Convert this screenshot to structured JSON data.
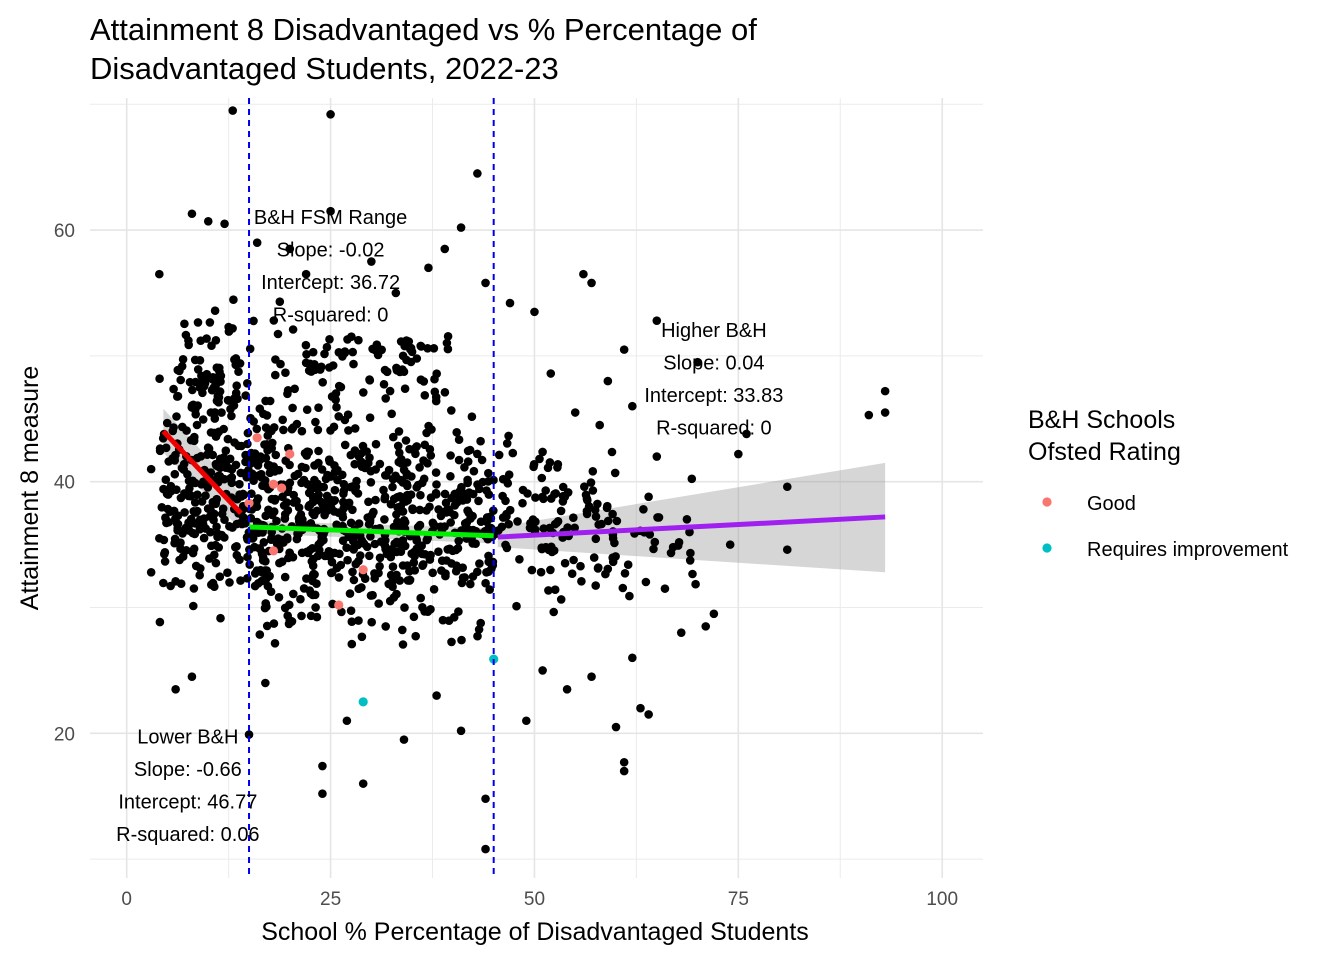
{
  "chart_data": {
    "type": "scatter",
    "title": "Attainment 8 Disadvantaged vs % Percentage of\nDisadvantaged Students, 2022-23",
    "xlabel": "School % Percentage of Disadvantaged Students",
    "ylabel": "Attainment 8 measure",
    "xlim": [
      -4.5,
      105
    ],
    "ylim": [
      8.5,
      70.5
    ],
    "x_ticks": [
      0,
      25,
      50,
      75,
      100
    ],
    "y_ticks": [
      20,
      40,
      60
    ],
    "grid": true,
    "vlines": [
      {
        "x": 15,
        "color": "#0000ee",
        "style": "dashed"
      },
      {
        "x": 45,
        "color": "#0000ee",
        "style": "dashed"
      }
    ],
    "fit_lines": [
      {
        "x": [
          4.5,
          14
        ],
        "y": [
          44.0,
          37.5
        ],
        "color": "#ee0000",
        "band": [
          [
            4.5,
            45.8,
            42.3
          ],
          [
            14,
            39.0,
            36.2
          ]
        ]
      },
      {
        "x": [
          15,
          45
        ],
        "y": [
          36.4,
          35.7
        ],
        "color": "#00ee00",
        "band": [
          [
            15,
            36.9,
            35.9
          ],
          [
            45,
            36.3,
            35.1
          ]
        ]
      },
      {
        "x": [
          45.5,
          93
        ],
        "y": [
          35.6,
          37.2
        ],
        "color": "#a020f0",
        "band": [
          [
            45.5,
            36.4,
            34.8
          ],
          [
            93,
            41.5,
            32.8
          ]
        ]
      }
    ],
    "annotations": [
      {
        "x": 25,
        "y": 60.5,
        "lines": [
          "B&H FSM Range",
          "Slope: -0.02",
          "Intercept: 36.72",
          "R-squared: 0"
        ]
      },
      {
        "x": 72,
        "y": 51.5,
        "lines": [
          "Higher B&H",
          "Slope: 0.04",
          "Intercept: 33.83",
          "R-squared: 0"
        ]
      },
      {
        "x": 7.5,
        "y": 19.2,
        "lines": [
          "Lower B&H",
          "Slope: -0.66",
          "Intercept: 46.77",
          "R-squared: 0.06"
        ]
      }
    ],
    "legend": {
      "title": "B&H Schools\nOfsted Rating",
      "position": "right",
      "entries": [
        {
          "label": "Good",
          "color": "#f8766d"
        },
        {
          "label": "Requires improvement",
          "color": "#00bfc4"
        }
      ]
    },
    "highlighted_points": [
      {
        "x": 16,
        "y": 43.5,
        "rating": "Good"
      },
      {
        "x": 20,
        "y": 42.2,
        "rating": "Good"
      },
      {
        "x": 18,
        "y": 39.8,
        "rating": "Good"
      },
      {
        "x": 19,
        "y": 39.5,
        "rating": "Good"
      },
      {
        "x": 15,
        "y": 38.3,
        "rating": "Good"
      },
      {
        "x": 18,
        "y": 34.5,
        "rating": "Good"
      },
      {
        "x": 29,
        "y": 33.0,
        "rating": "Good"
      },
      {
        "x": 26,
        "y": 30.2,
        "rating": "Good"
      },
      {
        "x": 29,
        "y": 22.5,
        "rating": "Requires improvement"
      },
      {
        "x": 45,
        "y": 25.9,
        "rating": "Requires improvement"
      }
    ],
    "outlier_points": [
      {
        "x": 13,
        "y": 69.5
      },
      {
        "x": 25,
        "y": 69.2
      },
      {
        "x": 43,
        "y": 64.5
      },
      {
        "x": 8,
        "y": 61.3
      },
      {
        "x": 25,
        "y": 61.5
      },
      {
        "x": 41,
        "y": 60.2
      },
      {
        "x": 44,
        "y": 55.8
      },
      {
        "x": 4,
        "y": 56.5
      },
      {
        "x": 56,
        "y": 56.5
      },
      {
        "x": 57,
        "y": 55.8
      },
      {
        "x": 47,
        "y": 54.2
      },
      {
        "x": 65,
        "y": 52.8
      },
      {
        "x": 61,
        "y": 50.5
      },
      {
        "x": 70,
        "y": 49.5
      },
      {
        "x": 52,
        "y": 48.6
      },
      {
        "x": 59,
        "y": 48.0
      },
      {
        "x": 93,
        "y": 47.2
      },
      {
        "x": 93,
        "y": 45.5
      },
      {
        "x": 91,
        "y": 45.3
      },
      {
        "x": 76,
        "y": 43.8
      },
      {
        "x": 75,
        "y": 42.2
      },
      {
        "x": 81,
        "y": 39.6
      },
      {
        "x": 81,
        "y": 34.6
      },
      {
        "x": 72,
        "y": 29.5
      },
      {
        "x": 71,
        "y": 28.5
      },
      {
        "x": 68,
        "y": 28.0
      },
      {
        "x": 74,
        "y": 35.0
      },
      {
        "x": 62,
        "y": 26.0
      },
      {
        "x": 61,
        "y": 17.7
      },
      {
        "x": 61,
        "y": 17.0
      },
      {
        "x": 60,
        "y": 20.5
      },
      {
        "x": 63,
        "y": 22.0
      },
      {
        "x": 64,
        "y": 21.5
      },
      {
        "x": 49,
        "y": 21.0
      },
      {
        "x": 54,
        "y": 23.5
      },
      {
        "x": 44,
        "y": 14.8
      },
      {
        "x": 44,
        "y": 10.8
      },
      {
        "x": 24,
        "y": 15.2
      },
      {
        "x": 24,
        "y": 17.4
      },
      {
        "x": 29,
        "y": 16.0
      },
      {
        "x": 34,
        "y": 19.5
      },
      {
        "x": 41,
        "y": 20.2
      },
      {
        "x": 27,
        "y": 21.0
      },
      {
        "x": 15,
        "y": 19.9
      },
      {
        "x": 6,
        "y": 23.5
      },
      {
        "x": 8,
        "y": 24.5
      },
      {
        "x": 17,
        "y": 24.0
      },
      {
        "x": 38,
        "y": 23.0
      },
      {
        "x": 51,
        "y": 25.0
      },
      {
        "x": 57,
        "y": 24.5
      },
      {
        "x": 3,
        "y": 32.8
      },
      {
        "x": 4,
        "y": 35.5
      },
      {
        "x": 3,
        "y": 41.0
      },
      {
        "x": 66,
        "y": 31.5
      },
      {
        "x": 67,
        "y": 34.8
      },
      {
        "x": 64,
        "y": 38.8
      },
      {
        "x": 65,
        "y": 42.0
      },
      {
        "x": 62,
        "y": 46.0
      },
      {
        "x": 58,
        "y": 44.5
      },
      {
        "x": 55,
        "y": 45.5
      },
      {
        "x": 50,
        "y": 53.5
      },
      {
        "x": 37,
        "y": 57.0
      },
      {
        "x": 30,
        "y": 57.5
      },
      {
        "x": 20,
        "y": 58.5
      },
      {
        "x": 16,
        "y": 59.0
      },
      {
        "x": 12,
        "y": 60.5
      },
      {
        "x": 10,
        "y": 60.7
      },
      {
        "x": 39,
        "y": 58.5
      },
      {
        "x": 22,
        "y": 56.5
      },
      {
        "x": 33,
        "y": 55.0
      }
    ],
    "cloud_regions": [
      {
        "x": [
          4,
          15
        ],
        "y": [
          26,
          52
        ],
        "count": 240
      },
      {
        "x": [
          15,
          30
        ],
        "y": [
          24,
          50
        ],
        "count": 380
      },
      {
        "x": [
          30,
          45
        ],
        "y": [
          25,
          48
        ],
        "count": 300
      },
      {
        "x": [
          45,
          60
        ],
        "y": [
          27,
          46
        ],
        "count": 120
      },
      {
        "x": [
          60,
          70
        ],
        "y": [
          28,
          42
        ],
        "count": 25
      },
      {
        "x": [
          6,
          14
        ],
        "y": [
          40,
          56
        ],
        "count": 70
      },
      {
        "x": [
          15,
          40
        ],
        "y": [
          44,
          55
        ],
        "count": 90
      }
    ]
  }
}
